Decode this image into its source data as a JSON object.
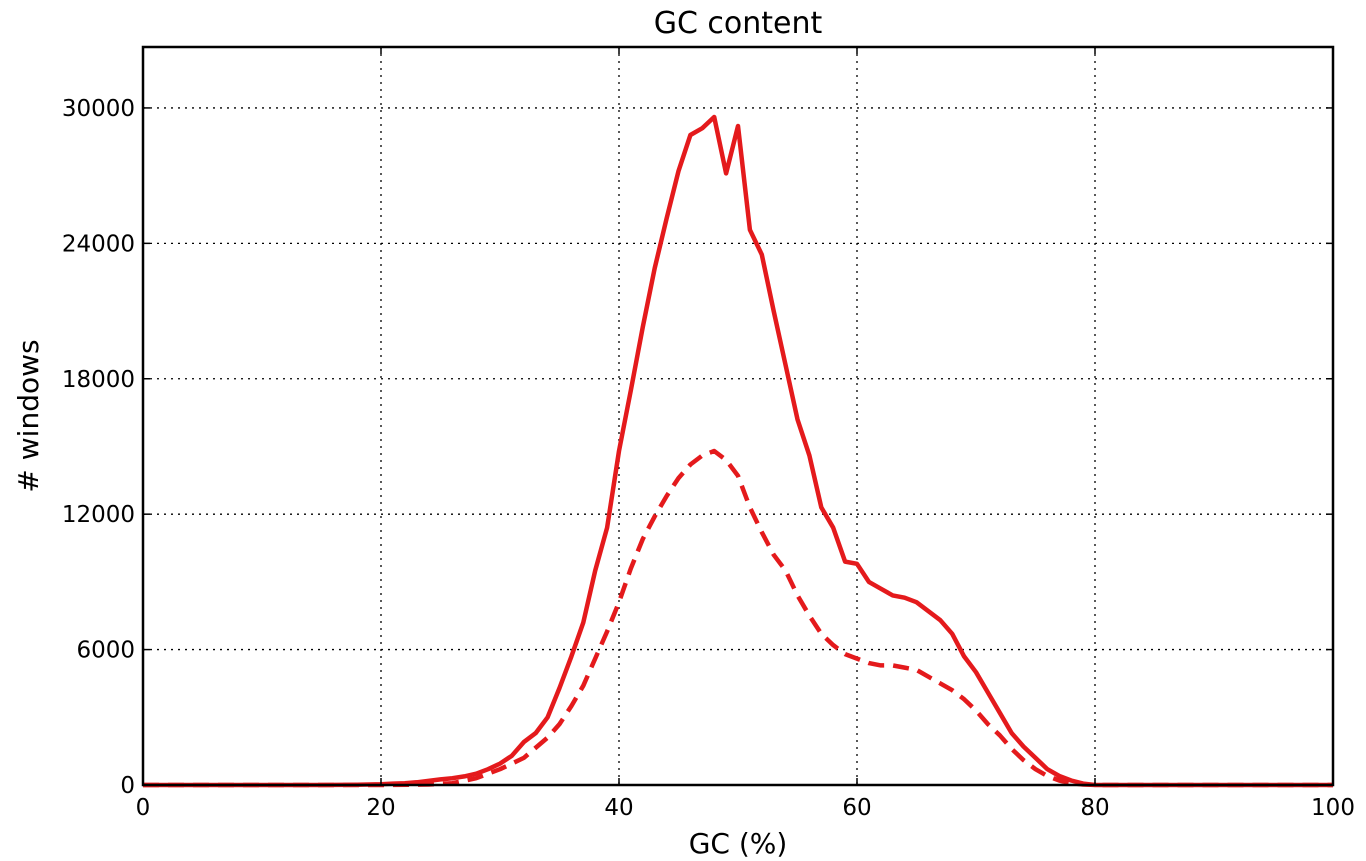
{
  "chart_data": {
    "type": "line",
    "title": "GC content",
    "xlabel": "GC (%)",
    "ylabel": "# windows",
    "xlim": [
      0,
      100
    ],
    "ylim": [
      0,
      32700
    ],
    "xticks": [
      0,
      20,
      40,
      60,
      80,
      100
    ],
    "yticks": [
      0,
      6000,
      12000,
      18000,
      24000,
      30000
    ],
    "grid": true,
    "legend": "none",
    "series": [
      {
        "style": "solid",
        "color": "#e41a1c",
        "x": [
          0,
          5,
          10,
          15,
          18,
          20,
          21,
          22,
          23,
          24,
          25,
          26,
          27,
          28,
          29,
          30,
          31,
          32,
          33,
          34,
          35,
          36,
          37,
          38,
          39,
          40,
          41,
          42,
          43,
          44,
          45,
          46,
          47,
          48,
          49,
          50,
          51,
          52,
          53,
          54,
          55,
          56,
          57,
          58,
          59,
          60,
          61,
          62,
          63,
          64,
          65,
          66,
          67,
          68,
          69,
          70,
          71,
          72,
          73,
          74,
          75,
          76,
          77,
          78,
          79,
          80,
          82,
          85,
          90,
          95,
          100
        ],
        "y": [
          0,
          0,
          0,
          0,
          10,
          30,
          60,
          80,
          120,
          180,
          250,
          300,
          380,
          500,
          700,
          950,
          1300,
          1900,
          2300,
          3000,
          4300,
          5700,
          7200,
          9500,
          11400,
          14800,
          17500,
          20300,
          22900,
          25100,
          27200,
          28800,
          29100,
          29600,
          27100,
          29200,
          24600,
          23500,
          21000,
          18600,
          16200,
          14600,
          12300,
          11400,
          9900,
          9800,
          9000,
          8700,
          8400,
          8300,
          8100,
          7700,
          7300,
          6700,
          5700,
          5000,
          4100,
          3200,
          2300,
          1700,
          1200,
          700,
          400,
          200,
          60,
          0,
          0,
          0,
          0,
          0,
          0
        ]
      },
      {
        "style": "dashed",
        "color": "#e41a1c",
        "x": [
          0,
          5,
          10,
          15,
          20,
          24,
          26,
          28,
          30,
          32,
          34,
          35,
          36,
          37,
          38,
          39,
          40,
          41,
          42,
          43,
          44,
          45,
          46,
          47,
          48,
          49,
          50,
          51,
          52,
          53,
          54,
          55,
          56,
          57,
          58,
          59,
          60,
          61,
          62,
          63,
          64,
          65,
          66,
          67,
          68,
          69,
          70,
          71,
          72,
          73,
          74,
          75,
          76,
          77,
          78,
          79,
          80,
          85,
          90,
          100
        ],
        "y": [
          0,
          0,
          0,
          0,
          0,
          20,
          80,
          300,
          700,
          1200,
          2100,
          2700,
          3500,
          4400,
          5600,
          6800,
          8100,
          9600,
          10900,
          11900,
          12800,
          13600,
          14200,
          14600,
          14800,
          14400,
          13700,
          12300,
          11200,
          10200,
          9500,
          8400,
          7500,
          6700,
          6200,
          5800,
          5600,
          5400,
          5300,
          5300,
          5200,
          5100,
          4800,
          4500,
          4200,
          3800,
          3300,
          2700,
          2200,
          1600,
          1100,
          700,
          400,
          200,
          80,
          20,
          0,
          0,
          0,
          0
        ]
      }
    ]
  }
}
